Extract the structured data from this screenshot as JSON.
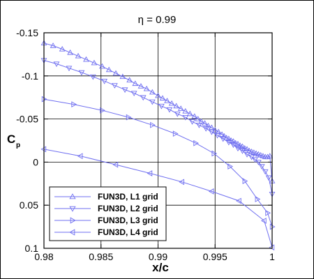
{
  "chart_data": {
    "type": "line",
    "title": "η = 0.99",
    "xlabel": "x/c",
    "ylabel_main": "C",
    "ylabel_sub": "p",
    "xlim": [
      0.98,
      1.0
    ],
    "ylim": [
      -0.15,
      0.1
    ],
    "y_inverted": true,
    "grid": true,
    "legend_position": "bottom-left",
    "x_ticks": [
      0.98,
      0.985,
      0.99,
      0.995,
      1.0
    ],
    "x_tick_labels": [
      "0.98",
      "0.985",
      "0.99",
      "0.995",
      "1"
    ],
    "y_ticks": [
      -0.15,
      -0.1,
      -0.05,
      0,
      0.05,
      0.1
    ],
    "y_tick_labels": [
      "-0.15",
      "-0.1",
      "-0.05",
      "0",
      "0.05",
      "0.1"
    ],
    "line_color": "#6f6ff0",
    "series": [
      {
        "name": "FUN3D, L1 grid",
        "marker": "triangle-up",
        "x": [
          0.98,
          0.9808,
          0.9816,
          0.9823,
          0.983,
          0.9837,
          0.9844,
          0.9851,
          0.9857,
          0.9863,
          0.9869,
          0.9875,
          0.988,
          0.9885,
          0.989,
          0.9895,
          0.99,
          0.9904,
          0.9908,
          0.9912,
          0.9916,
          0.992,
          0.9924,
          0.9928,
          0.9932,
          0.9935,
          0.9938,
          0.9941,
          0.9944,
          0.9947,
          0.995,
          0.9953,
          0.9956,
          0.9958,
          0.996,
          0.9962,
          0.9964,
          0.9966,
          0.9968,
          0.997,
          0.9972,
          0.9974,
          0.9976,
          0.9978,
          0.998,
          0.9982,
          0.9984,
          0.9986,
          0.9988,
          0.999,
          0.9992,
          0.9994,
          0.9996,
          0.9998,
          1.0
        ],
        "y": [
          -0.138,
          -0.135,
          -0.131,
          -0.127,
          -0.123,
          -0.119,
          -0.115,
          -0.111,
          -0.107,
          -0.103,
          -0.099,
          -0.095,
          -0.091,
          -0.088,
          -0.085,
          -0.081,
          -0.077,
          -0.074,
          -0.071,
          -0.068,
          -0.065,
          -0.062,
          -0.059,
          -0.056,
          -0.053,
          -0.05,
          -0.047,
          -0.045,
          -0.042,
          -0.04,
          -0.037,
          -0.035,
          -0.032,
          -0.03,
          -0.028,
          -0.027,
          -0.025,
          -0.024,
          -0.022,
          -0.021,
          -0.019,
          -0.018,
          -0.016,
          -0.015,
          -0.013,
          -0.012,
          -0.011,
          -0.01,
          -0.009,
          -0.008,
          -0.007,
          -0.006,
          -0.006,
          -0.007,
          0.022
        ]
      },
      {
        "name": "FUN3D, L2 grid",
        "marker": "triangle-down",
        "x": [
          0.98,
          0.9811,
          0.9822,
          0.9833,
          0.9843,
          0.9853,
          0.9862,
          0.9871,
          0.9879,
          0.9887,
          0.9895,
          0.9903,
          0.991,
          0.9917,
          0.9924,
          0.993,
          0.9936,
          0.9942,
          0.9947,
          0.9952,
          0.9957,
          0.9962,
          0.9966,
          0.997,
          0.9974,
          0.9978,
          0.9982,
          0.9985,
          0.9988,
          0.9991,
          0.9994,
          0.9997,
          1.0
        ],
        "y": [
          -0.118,
          -0.114,
          -0.109,
          -0.104,
          -0.099,
          -0.094,
          -0.089,
          -0.084,
          -0.08,
          -0.075,
          -0.07,
          -0.065,
          -0.061,
          -0.056,
          -0.052,
          -0.047,
          -0.043,
          -0.039,
          -0.035,
          -0.031,
          -0.027,
          -0.023,
          -0.02,
          -0.016,
          -0.013,
          -0.009,
          -0.006,
          -0.003,
          0.0,
          0.005,
          0.011,
          0.018,
          0.037
        ]
      },
      {
        "name": "FUN3D, L3 grid",
        "marker": "triangle-right",
        "x": [
          0.98,
          0.9826,
          0.9851,
          0.9874,
          0.9895,
          0.9915,
          0.9933,
          0.9949,
          0.9963,
          0.9976,
          0.9987,
          0.9996,
          1.0
        ],
        "y": [
          -0.073,
          -0.067,
          -0.06,
          -0.052,
          -0.043,
          -0.033,
          -0.022,
          -0.01,
          0.005,
          0.022,
          0.043,
          0.059,
          0.075
        ]
      },
      {
        "name": "FUN3D, L4 grid",
        "marker": "triangle-left",
        "x": [
          0.98,
          0.9832,
          0.9863,
          0.9893,
          0.9921,
          0.9947,
          0.9971,
          0.9993,
          1.0
        ],
        "y": [
          -0.015,
          -0.007,
          0.003,
          0.013,
          0.023,
          0.034,
          0.045,
          0.068,
          0.099
        ]
      }
    ]
  }
}
